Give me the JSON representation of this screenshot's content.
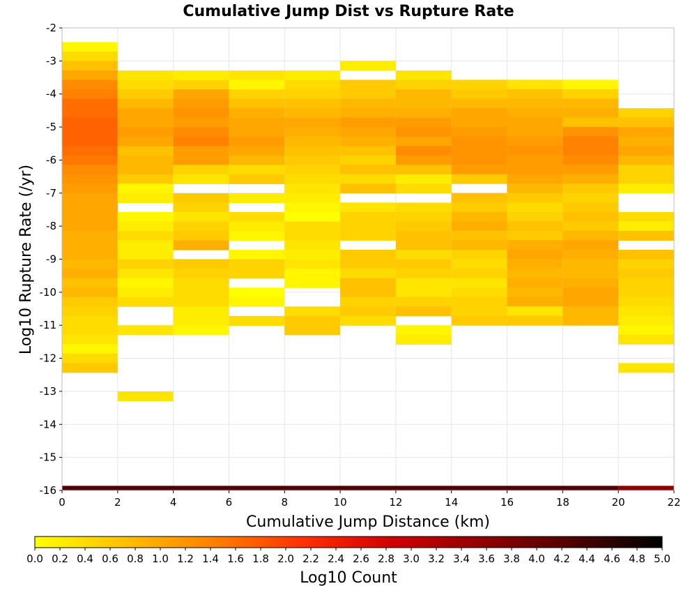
{
  "chart_data": {
    "type": "heatmap",
    "title": "Cumulative Jump Dist vs Rupture Rate",
    "xlabel": "Cumulative Jump Distance (km)",
    "ylabel": "Log10 Rupture Rate (/yr)",
    "xlim": [
      0,
      22
    ],
    "ylim": [
      -16,
      -2
    ],
    "x_ticks": [
      "0",
      "2",
      "4",
      "6",
      "8",
      "10",
      "12",
      "14",
      "16",
      "18",
      "20",
      "22"
    ],
    "y_ticks": [
      "-2",
      "-3",
      "-4",
      "-5",
      "-6",
      "-7",
      "-8",
      "-9",
      "-10",
      "-11",
      "-12",
      "-13",
      "-14",
      "-15",
      "-16"
    ],
    "grid": true,
    "bin_width_x": 2,
    "bin_height_y": 0.2857,
    "x_bins": [
      0,
      2,
      4,
      6,
      8,
      10,
      12,
      14,
      16,
      18,
      20
    ],
    "colorbar": {
      "label": "Log10 Count",
      "min": 0,
      "max": 5,
      "ticks": [
        "0.0",
        "0.2",
        "0.4",
        "0.6",
        "0.8",
        "1.0",
        "1.2",
        "1.4",
        "1.6",
        "1.8",
        "2.0",
        "2.2",
        "2.4",
        "2.6",
        "2.8",
        "3.0",
        "3.2",
        "3.4",
        "3.6",
        "3.8",
        "4.0",
        "4.2",
        "4.4",
        "4.6",
        "4.8",
        "5.0"
      ],
      "colors": [
        "#ffff00",
        "#ffc000",
        "#ff8000",
        "#ff3000",
        "#d00000",
        "#900000",
        "#500000",
        "#000000"
      ]
    },
    "columns": [
      {
        "x": 0,
        "y_start": -2.43,
        "values": [
          0.1,
          0.4,
          0.7,
          1.0,
          1.3,
          1.4,
          1.6,
          1.6,
          1.7,
          1.7,
          1.7,
          1.6,
          1.5,
          1.3,
          1.2,
          1.1,
          1.0,
          1.0,
          1.0,
          1.0,
          0.9,
          0.9,
          0.9,
          0.8,
          0.9,
          0.7,
          0.8,
          0.6,
          0.5,
          0.4,
          0.4,
          0.3,
          0.1,
          0.4,
          0.6
        ]
      },
      {
        "x": 2,
        "y_start": -3.29,
        "values": [
          0.3,
          0.4,
          0.6,
          0.8,
          1.0,
          1.0,
          1.1,
          1.0,
          0.7,
          0.8,
          0.8,
          0.6,
          0.1,
          0.2,
          null,
          0.1,
          0.2,
          0.4,
          0.2,
          0.2,
          0.5,
          0.3,
          0.1,
          0.2,
          0.4,
          null,
          null,
          0.3,
          null,
          null,
          null,
          null,
          null,
          null,
          0.3
        ]
      },
      {
        "x": 4,
        "y_start": -3.29,
        "values": [
          0.2,
          0.5,
          1.0,
          1.1,
          1.2,
          1.1,
          1.3,
          1.4,
          1.1,
          1.1,
          0.5,
          0.3,
          null,
          0.6,
          0.5,
          0.3,
          0.5,
          0.6,
          0.9,
          null,
          0.6,
          0.5,
          0.4,
          0.4,
          0.4,
          0.2,
          0.2,
          0.1,
          null,
          null,
          null,
          null,
          null,
          null,
          null
        ]
      },
      {
        "x": 6,
        "y_start": -3.29,
        "values": [
          0.3,
          0.1,
          0.5,
          0.7,
          0.9,
          1.0,
          1.0,
          1.1,
          1.0,
          0.8,
          0.4,
          0.6,
          null,
          0.2,
          null,
          0.4,
          0.2,
          0.1,
          null,
          0.1,
          0.5,
          0.5,
          null,
          0.0,
          0.1,
          null,
          0.4,
          null,
          null,
          null,
          null,
          null,
          null,
          null,
          null
        ]
      },
      {
        "x": 8,
        "y_start": -3.29,
        "values": [
          0.2,
          0.4,
          0.5,
          0.7,
          0.8,
          1.0,
          0.9,
          0.8,
          0.7,
          0.6,
          0.5,
          0.4,
          0.3,
          0.2,
          0.1,
          0.0,
          0.4,
          0.4,
          0.3,
          0.2,
          0.3,
          0.1,
          0.1,
          null,
          null,
          0.4,
          0.6,
          0.6,
          null,
          null,
          null,
          null,
          null,
          null,
          null
        ]
      },
      {
        "x": 10,
        "y_start": -3.0,
        "values": [
          0.2,
          null,
          0.6,
          0.6,
          0.8,
          0.9,
          1.1,
          1.0,
          0.9,
          0.7,
          0.5,
          0.7,
          0.4,
          0.7,
          null,
          0.3,
          0.5,
          0.5,
          0.5,
          null,
          0.6,
          0.6,
          0.4,
          0.7,
          0.7,
          0.5,
          0.6,
          0.4,
          null,
          null,
          null,
          null,
          null,
          null,
          null
        ]
      },
      {
        "x": 12,
        "y_start": -3.29,
        "values": [
          0.3,
          0.5,
          0.8,
          0.8,
          0.9,
          1.1,
          1.2,
          1.0,
          1.3,
          1.1,
          0.7,
          0.2,
          0.4,
          null,
          0.4,
          0.5,
          0.6,
          0.7,
          0.7,
          0.4,
          0.6,
          0.5,
          0.3,
          0.3,
          0.5,
          0.7,
          null,
          0.1,
          0.2,
          null,
          null,
          null,
          null,
          null,
          null
        ]
      },
      {
        "x": 14,
        "y_start": -3.57,
        "values": [
          0.5,
          0.6,
          0.8,
          1.0,
          1.0,
          1.1,
          1.2,
          1.2,
          1.2,
          1.1,
          0.6,
          null,
          0.7,
          0.6,
          0.8,
          0.9,
          0.7,
          0.8,
          0.5,
          0.4,
          0.5,
          0.3,
          0.4,
          0.5,
          0.5,
          0.6,
          null,
          null,
          null,
          null,
          null,
          null,
          null,
          null,
          null
        ]
      },
      {
        "x": 16,
        "y_start": -3.57,
        "values": [
          0.3,
          0.7,
          0.8,
          0.9,
          1.0,
          1.0,
          1.1,
          1.2,
          1.1,
          1.1,
          1.0,
          0.8,
          0.6,
          0.4,
          0.5,
          0.7,
          0.6,
          0.9,
          1.0,
          0.9,
          0.8,
          0.9,
          0.8,
          0.9,
          0.3,
          0.6,
          null,
          null,
          null,
          null,
          null,
          null,
          null,
          null,
          null
        ]
      },
      {
        "x": 18,
        "y_start": -3.57,
        "values": [
          0.1,
          0.5,
          0.8,
          0.9,
          0.7,
          1.2,
          1.4,
          1.4,
          1.3,
          1.1,
          0.9,
          0.6,
          0.5,
          0.6,
          0.7,
          0.6,
          0.8,
          1.0,
          0.9,
          0.8,
          0.8,
          0.9,
          1.0,
          1.0,
          0.8,
          0.8,
          null,
          null,
          null,
          null,
          null,
          null,
          null,
          null,
          null
        ]
      },
      {
        "x": 20,
        "y_start": -4.43,
        "values": [
          0.5,
          0.7,
          1.0,
          0.9,
          1.0,
          0.8,
          0.5,
          0.5,
          0.2,
          null,
          null,
          0.4,
          0.2,
          0.7,
          null,
          0.7,
          0.5,
          0.6,
          0.5,
          0.5,
          0.4,
          0.3,
          0.2,
          0.1,
          0.3,
          null,
          null,
          0.3,
          null,
          null,
          null,
          null,
          null,
          null,
          null
        ]
      }
    ],
    "bottom_strip": {
      "y": -16,
      "value_main": 4.3,
      "value_last": 3.6
    }
  }
}
